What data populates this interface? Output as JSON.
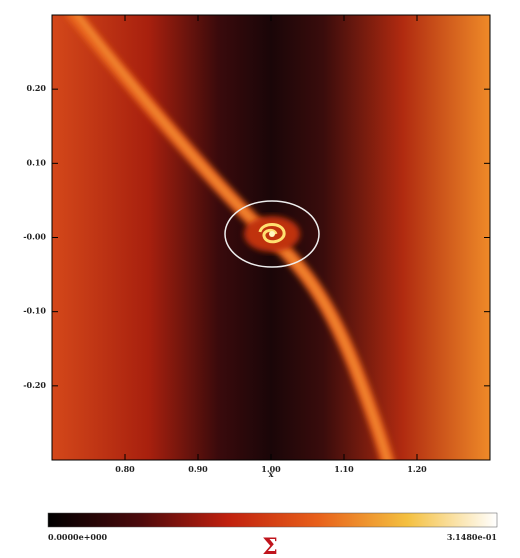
{
  "chart_data": {
    "type": "heatmap",
    "xlabel": "x",
    "xlim": [
      0.7,
      1.3
    ],
    "ylim": [
      -0.3,
      0.3
    ],
    "xticks": [
      {
        "value": 0.8,
        "label": "0.80"
      },
      {
        "value": 0.9,
        "label": "0.90"
      },
      {
        "value": 1.0,
        "label": "1.00"
      },
      {
        "value": 1.1,
        "label": "1.10"
      },
      {
        "value": 1.2,
        "label": "1.20"
      }
    ],
    "yticks": [
      {
        "value": 0.2,
        "label": "0.20"
      },
      {
        "value": 0.1,
        "label": "0.10"
      },
      {
        "value": 0,
        "label": "-0.00"
      },
      {
        "value": -0.1,
        "label": "-0.10"
      },
      {
        "value": -0.2,
        "label": "-0.20"
      }
    ],
    "colorbar": {
      "label": "Σ",
      "min_label": "0.0000e+000",
      "max_label": "3.1480e-01"
    }
  }
}
